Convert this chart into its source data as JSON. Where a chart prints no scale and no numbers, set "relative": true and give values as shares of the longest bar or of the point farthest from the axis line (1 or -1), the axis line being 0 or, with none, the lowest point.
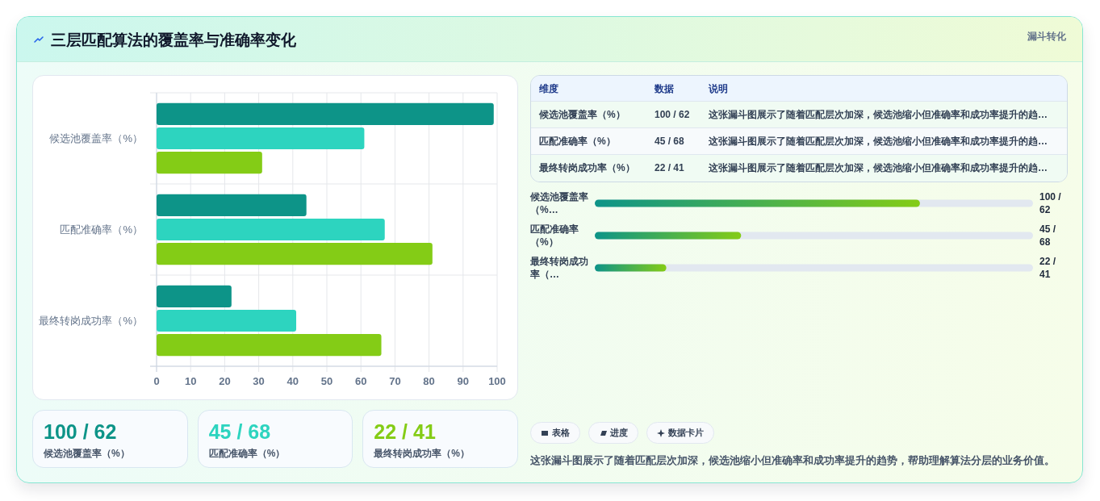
{
  "chart_data": [
    {
      "type": "bar",
      "orientation": "horizontal",
      "title": "三层匹配算法的覆盖率与准确率变化",
      "annotations": [
        "漏斗转化"
      ],
      "categories": [
        "候选池覆盖率（%）",
        "匹配准确率（%）",
        "最终转岗成功率（%）"
      ],
      "series": [
        {
          "color": "#0d9488",
          "values": [
            99,
            44,
            22
          ]
        },
        {
          "color": "#2dd4bf",
          "values": [
            61,
            67,
            41
          ]
        },
        {
          "color": "#84cc16",
          "values": [
            31,
            81,
            66
          ]
        }
      ],
      "xlim": [
        0,
        100
      ],
      "xticks": [
        0,
        10,
        20,
        30,
        40,
        50,
        60,
        70,
        80,
        90,
        100
      ],
      "grid": true
    },
    {
      "type": "other",
      "annotations": [
        "维度",
        "数据",
        "说明",
        "候选池覆盖率（%）",
        "100 / 62",
        "这张漏斗图展示了随着匹配层次加深，候选池缩小但准确率和成功率提升的趋…",
        "匹配准确率（%）",
        "45 / 68",
        "这张漏斗图展示了随着匹配层次加深，候选池缩小但准确率和成功率提升的趋…",
        "最终转岗成功率（%）",
        "22 / 41",
        "这张漏斗图展示了随着匹配层次加深，候选池缩小但准确率和成功率提升的趋…"
      ]
    },
    {
      "type": "bar",
      "orientation": "horizontal",
      "relative": true,
      "categories": [
        "候选池覆盖率（%…",
        "匹配准确率（%）",
        "最终转岗成功率（…"
      ],
      "values": [
        1,
        0.45,
        0.22
      ],
      "annotations": [
        "100 / 62",
        "45 / 68",
        "22 / 41"
      ],
      "color": "#0d9488"
    },
    {
      "type": "other",
      "annotations": [
        "100 / 62",
        "候选池覆盖率（%）",
        "45 / 68",
        "匹配准确率（%）",
        "22 / 41",
        "最终转岗成功率（%）"
      ],
      "colors": [
        "#0d9488",
        "#2dd4bf",
        "#84cc16"
      ]
    },
    {
      "type": "other",
      "annotations": [
        "表格",
        "进度",
        "数据卡片",
        "这张漏斗图展示了随着匹配层次加深，候选池缩小但准确率和成功率提升的趋势，帮助理解算法分层的业务价值。"
      ]
    }
  ]
}
